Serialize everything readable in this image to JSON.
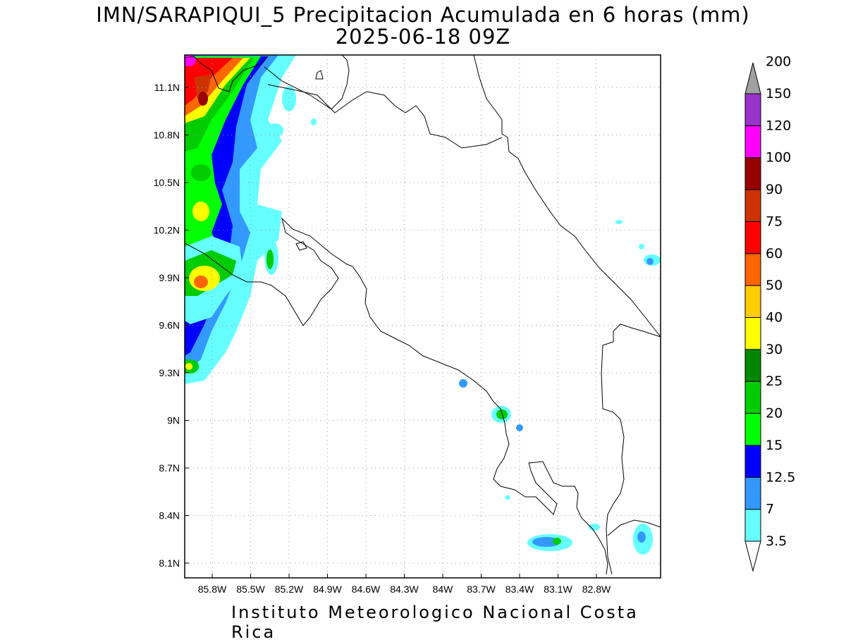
{
  "title_line1": "IMN/SARAPIQUI_5 Precipitacion Acumulada en 6 horas (mm)",
  "title_line2": "2025-06-18 09Z",
  "footer": "Instituto Meteorologico Nacional Costa Rica",
  "map": {
    "lon_range": [
      -86.0,
      -83.0
    ],
    "lat_range": [
      8.0,
      11.3
    ],
    "x_ticks": [
      "85.8W",
      "85.5W",
      "85.2W",
      "84.9W",
      "84.6W",
      "84.3W",
      "84W",
      "83.7W",
      "83.4W",
      "83.1W",
      "82.8W"
    ],
    "y_ticks": [
      "11.1N",
      "10.8N",
      "10.5N",
      "10.2N",
      "9.9N",
      "9.6N",
      "9.3N",
      "9N",
      "8.7N",
      "8.4N",
      "8.1N"
    ],
    "grid": "dotted"
  },
  "colorbar": {
    "levels": [
      "3.5",
      "7",
      "12.5",
      "15",
      "20",
      "25",
      "30",
      "40",
      "50",
      "60",
      "75",
      "90",
      "100",
      "120",
      "150",
      "200"
    ],
    "colors": [
      "#66ffff",
      "#3399ff",
      "#0000ff",
      "#00ff00",
      "#00cc00",
      "#008800",
      "#ffff00",
      "#ffcc00",
      "#ff6600",
      "#ff0000",
      "#cc3300",
      "#990000",
      "#ff00ff",
      "#9933cc",
      "#f4f4f4",
      "#a0a0a0"
    ]
  }
}
